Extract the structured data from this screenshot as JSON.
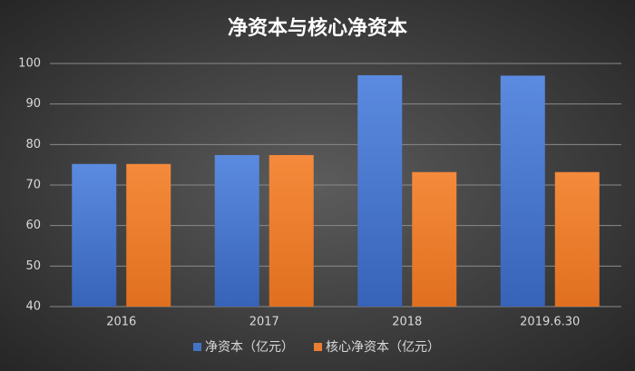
{
  "chart_data": {
    "type": "bar",
    "title": "净资本与核心净资本",
    "categories": [
      "2016",
      "2017",
      "2018",
      "2019.6.30"
    ],
    "series": [
      {
        "name": "净资本（亿元）",
        "color": "#4472c4",
        "values": [
          75.2,
          77.4,
          97.1,
          97
        ]
      },
      {
        "name": "核心净资本（亿元）",
        "color": "#ed7d31",
        "values": [
          75.2,
          77.4,
          73.2,
          73.2
        ]
      }
    ],
    "ylim": [
      40,
      100
    ],
    "yticks": [
      40,
      50,
      60,
      70,
      80,
      90,
      100
    ],
    "grid": true,
    "legend": "bottom"
  }
}
